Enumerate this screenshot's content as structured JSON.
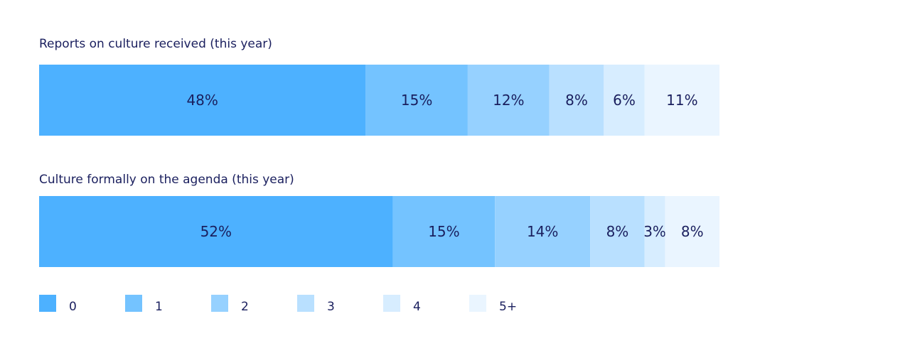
{
  "chart_data": {
    "type": "stacked-bar-horizontal",
    "legend_position": "bottom",
    "categories": [
      "0",
      "1",
      "2",
      "3",
      "4",
      "5+"
    ],
    "colors": [
      "#4db1ff",
      "#74c3ff",
      "#96d1ff",
      "#b9e0ff",
      "#d7edff",
      "#eaf5ff"
    ],
    "value_suffix": "%",
    "bars": [
      {
        "title": "Reports on culture received (this year)",
        "values": [
          48,
          15,
          12,
          8,
          6,
          11
        ]
      },
      {
        "title": "Culture formally on the agenda (this year)",
        "values": [
          52,
          15,
          14,
          8,
          3,
          8
        ]
      }
    ]
  }
}
